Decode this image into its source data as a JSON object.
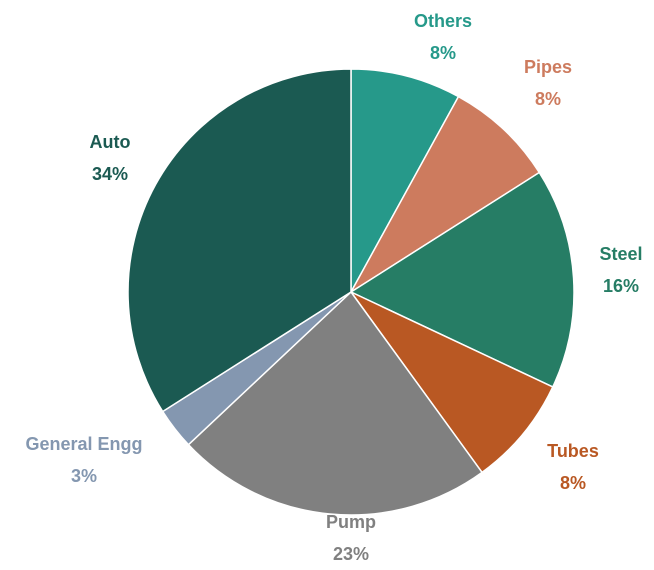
{
  "chart_data": {
    "type": "pie",
    "categories": [
      "Others",
      "Pipes",
      "Steel",
      "Tubes",
      "Pump",
      "General Engg",
      "Auto"
    ],
    "values": [
      8,
      8,
      16,
      8,
      23,
      3,
      34
    ],
    "value_labels": [
      "8%",
      "8%",
      "16%",
      "8%",
      "23%",
      "3%",
      "34%"
    ],
    "colors": [
      "#26998a",
      "#cd7b5e",
      "#267d65",
      "#b95823",
      "#808080",
      "#8497b0",
      "#1b5a52"
    ]
  }
}
